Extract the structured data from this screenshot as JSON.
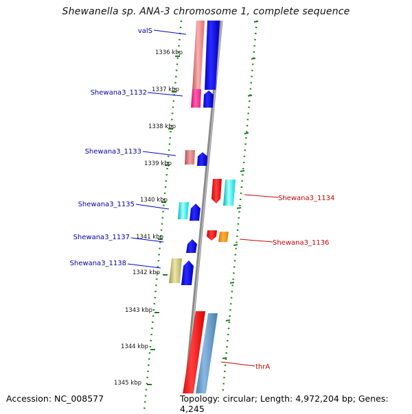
{
  "title": "Shewanella sp. ANA-3 chromosome 1, complete sequence",
  "accession": "Accession: NC_008577",
  "topology": "Topology: circular; Length: 4,972,204 bp; Genes: 4,245",
  "colors": {
    "backbone": "#7a7a7a",
    "dots": "#1f8a1f",
    "forward_label": "#0000aa",
    "reverse_label": "#cc0000",
    "ticks": "#1f7a1f"
  },
  "scale": [
    {
      "label": "1336 kbp",
      "kbp": 1336
    },
    {
      "label": "1337 kbp",
      "kbp": 1337
    },
    {
      "label": "1338 kbp",
      "kbp": 1338
    },
    {
      "label": "1339 kbp",
      "kbp": 1339
    },
    {
      "label": "1340 kbp",
      "kbp": 1340
    },
    {
      "label": "1341 kbp",
      "kbp": 1341
    },
    {
      "label": "1342 kbp",
      "kbp": 1342
    },
    {
      "label": "1343 kbp",
      "kbp": 1343
    },
    {
      "label": "1344 kbp",
      "kbp": 1344
    },
    {
      "label": "1345 kbp",
      "kbp": 1345
    }
  ],
  "genes": [
    {
      "name": "valS",
      "strand": "forward",
      "colors": [
        "#f08080",
        "#0000ff"
      ],
      "arrow": false
    },
    {
      "name": "Shewana3_1132",
      "strand": "forward",
      "colors": [
        "#ff1493",
        "#0000ff"
      ],
      "arrow": true
    },
    {
      "name": "Shewana3_1133",
      "strand": "forward",
      "colors": [
        "#e08080",
        "#0000ff"
      ],
      "arrow": true
    },
    {
      "name": "Shewana3_1134",
      "strand": "reverse",
      "colors": [
        "#ff0000",
        "#00e5e5"
      ],
      "arrow": true
    },
    {
      "name": "Shewana3_1135",
      "strand": "forward",
      "colors": [
        "#00e5e5",
        "#0000ff"
      ],
      "arrow": true
    },
    {
      "name": "Shewana3_1136",
      "strand": "reverse",
      "colors": [
        "#ff0000",
        "#ff8c00"
      ],
      "arrow": true
    },
    {
      "name": "Shewana3_1137",
      "strand": "forward",
      "colors": [
        "#0000ff"
      ],
      "arrow": true
    },
    {
      "name": "Shewana3_1138",
      "strand": "forward",
      "colors": [
        "#bdb76b",
        "#0000ff"
      ],
      "arrow": true
    },
    {
      "name": "thrA",
      "strand": "reverse",
      "colors": [
        "#ff0000",
        "#4682b4"
      ],
      "arrow": false
    }
  ]
}
